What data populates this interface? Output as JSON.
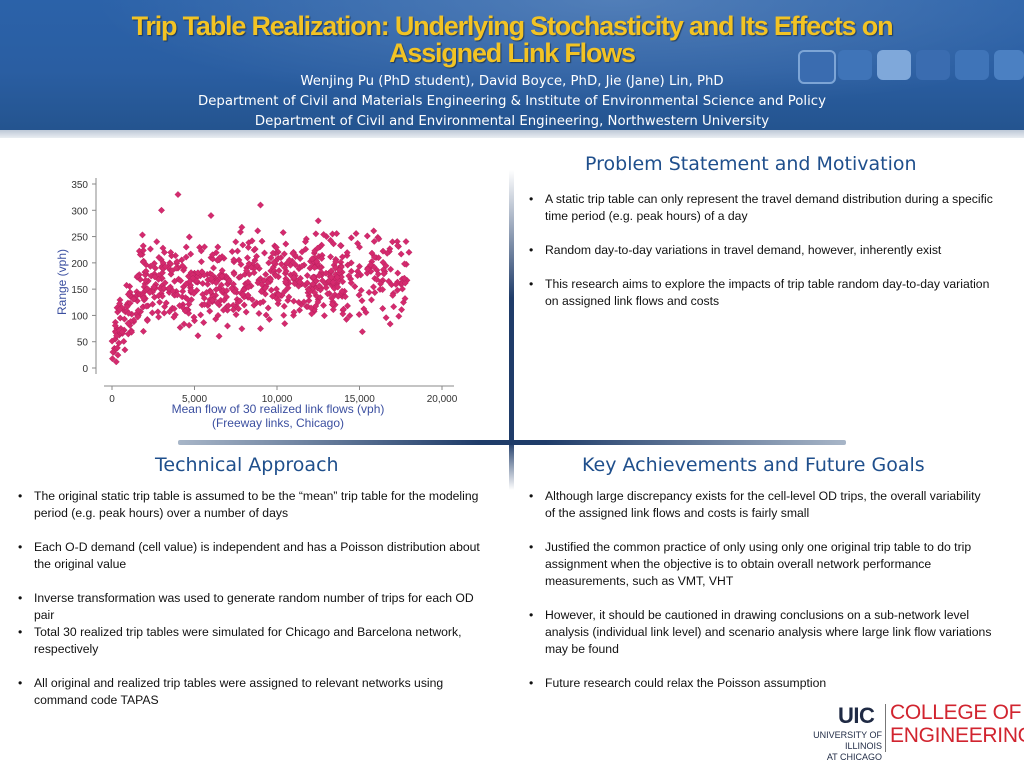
{
  "header": {
    "title_line1": "Trip Table Realization: Underlying Stochasticity and Its Effects on",
    "title_line2": "Assigned Link Flows",
    "authors": "Wenjing Pu (PhD student), David Boyce, PhD, Jie (Jane) Lin, PhD",
    "affiliation1": "Department of Civil and Materials Engineering & Institute of Environmental Science and Policy",
    "affiliation2": "Department of Civil and Environmental Engineering, Northwestern University"
  },
  "colors": {
    "header_blue": "#2a5ea2",
    "title_gold": "#f2c324",
    "section_blue": "#1f4f8c",
    "point_magenta": "#d42a6e",
    "axis_label_blue": "#3b4fa0",
    "uic_red": "#d1242f"
  },
  "sections": {
    "problem": {
      "title": "Problem Statement and Motivation",
      "bullets": [
        "A static trip table can only represent the travel demand distribution during a specific time period (e.g. peak hours) of a day",
        "Random day-to-day variations in travel demand, however, inherently exist",
        "This research aims to explore the impacts of trip table random day-to-day variation on assigned link flows and costs"
      ]
    },
    "technical": {
      "title": "Technical Approach",
      "bullets": [
        "The original static trip table is assumed to be the “mean” trip table for the modeling period (e.g. peak hours) over a number of days",
        "Each O-D demand (cell value) is independent and has a Poisson distribution about the original value",
        "Inverse transformation was used to generate random number of trips for each OD pair",
        "Total 30 realized trip tables were simulated for Chicago and Barcelona network, respectively",
        "All original and realized trip tables were assigned to relevant networks using command code TAPAS"
      ]
    },
    "achievements": {
      "title": "Key Achievements and Future Goals",
      "bullets": [
        "Although large discrepancy exists for the cell-level OD trips, the overall variability of the assigned link flows and costs is fairly small",
        "Justified the common practice of only using only one original trip table to do trip assignment when the objective is to obtain overall network performance measurements, such as VMT, VHT",
        "However, it should be cautioned in drawing conclusions on a sub-network level analysis (individual link level) and scenario analysis where large link flow variations may be found",
        "Future research could relax the Poisson assumption"
      ]
    }
  },
  "chart_data": {
    "type": "scatter",
    "title": "",
    "xlabel": "Mean flow of 30 realized link flows (vph)",
    "xlabel_line2": "(Freeway links, Chicago)",
    "ylabel": "Range (vph)",
    "xlim": [
      0,
      20000
    ],
    "ylim": [
      0,
      350
    ],
    "xticks": [
      "0",
      "5,000",
      "10,000",
      "15,000",
      "20,000"
    ],
    "xtick_values": [
      0,
      5000,
      10000,
      15000,
      20000
    ],
    "yticks": [
      "0",
      "50",
      "100",
      "150",
      "200",
      "250",
      "300",
      "350"
    ],
    "ytick_values": [
      0,
      50,
      100,
      150,
      200,
      250,
      300,
      350
    ],
    "grid": false,
    "marker": "diamond",
    "sample_points": [
      [
        100,
        30
      ],
      [
        200,
        55
      ],
      [
        300,
        75
      ],
      [
        500,
        95
      ],
      [
        700,
        110
      ],
      [
        900,
        120
      ],
      [
        1200,
        135
      ],
      [
        1500,
        145
      ],
      [
        2000,
        160
      ],
      [
        2500,
        150
      ],
      [
        3000,
        170
      ],
      [
        3500,
        200
      ],
      [
        4000,
        190
      ],
      [
        4500,
        230
      ],
      [
        5000,
        180
      ],
      [
        5500,
        140
      ],
      [
        6000,
        210
      ],
      [
        6500,
        120
      ],
      [
        7000,
        160
      ],
      [
        7500,
        240
      ],
      [
        8000,
        150
      ],
      [
        8500,
        130
      ],
      [
        9000,
        170
      ],
      [
        9500,
        200
      ],
      [
        10000,
        140
      ],
      [
        10500,
        180
      ],
      [
        11000,
        220
      ],
      [
        11500,
        160
      ],
      [
        12000,
        190
      ],
      [
        12500,
        130
      ],
      [
        13000,
        250
      ],
      [
        13500,
        170
      ],
      [
        14000,
        140
      ],
      [
        14500,
        200
      ],
      [
        15000,
        230
      ],
      [
        15500,
        190
      ],
      [
        16000,
        210
      ],
      [
        16500,
        180
      ],
      [
        17000,
        240
      ],
      [
        17500,
        160
      ],
      [
        18000,
        220
      ],
      [
        3000,
        300
      ],
      [
        4000,
        330
      ],
      [
        6000,
        290
      ],
      [
        9000,
        310
      ],
      [
        12500,
        280
      ],
      [
        5000,
        90
      ],
      [
        7000,
        80
      ],
      [
        9000,
        75
      ],
      [
        11000,
        100
      ],
      [
        14000,
        110
      ]
    ]
  },
  "logo": {
    "uic": "UIC",
    "univ_line1": "UNIVERSITY OF ILLINOIS",
    "univ_line2": "AT CHICAGO",
    "college_line1": "COLLEGE OF",
    "college_line2": "ENGINEERING"
  }
}
